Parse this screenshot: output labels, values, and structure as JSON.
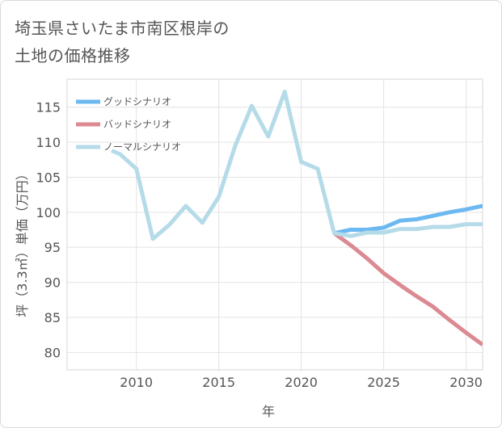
{
  "title": {
    "line1": "埼玉県さいたま市南区根岸の",
    "line2": "土地の価格推移"
  },
  "chart_data": {
    "type": "line",
    "xlabel": "年",
    "ylabel": "坪（3.3㎡）単価（万円）",
    "xlim": [
      2005.8,
      2031.0
    ],
    "ylim": [
      77.5,
      119.0
    ],
    "x_ticks": [
      2010,
      2015,
      2020,
      2025,
      2030
    ],
    "y_ticks": [
      80,
      85,
      90,
      95,
      100,
      105,
      110,
      115
    ],
    "grid": true,
    "legend_position": "top-left",
    "series": [
      {
        "name": "グッドシナリオ",
        "color": "#6cb8f0",
        "x": [
          2022,
          2023,
          2024,
          2025,
          2026,
          2027,
          2028,
          2029,
          2030,
          2031
        ],
        "values": [
          97.0,
          97.5,
          97.5,
          97.8,
          98.8,
          99.0,
          99.5,
          100.0,
          100.4,
          100.9
        ]
      },
      {
        "name": "バッドシナリオ",
        "color": "#dc8a92",
        "x": [
          2022,
          2023,
          2024,
          2025,
          2026,
          2027,
          2028,
          2029,
          2030,
          2031
        ],
        "values": [
          97.0,
          95.3,
          93.4,
          91.3,
          89.6,
          88.0,
          86.5,
          84.6,
          82.8,
          81.1
        ]
      },
      {
        "name": "ノーマルシナリオ",
        "color": "#b5dbe9",
        "x": [
          2008.5,
          2009,
          2010,
          2011,
          2012,
          2013,
          2014,
          2015,
          2016,
          2017,
          2018,
          2019,
          2020,
          2021,
          2022,
          2023,
          2024,
          2025,
          2026,
          2027,
          2028,
          2029,
          2030,
          2031
        ],
        "values": [
          108.8,
          108.3,
          106.2,
          96.2,
          98.2,
          100.9,
          98.5,
          102.2,
          109.5,
          115.2,
          110.8,
          117.2,
          107.2,
          106.2,
          97.0,
          96.6,
          97.1,
          97.1,
          97.6,
          97.6,
          97.9,
          97.9,
          98.3,
          98.3
        ]
      }
    ]
  }
}
